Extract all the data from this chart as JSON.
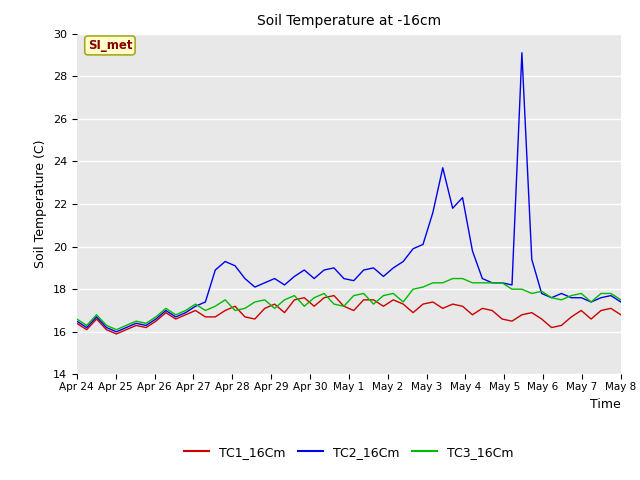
{
  "title": "Soil Temperature at -16cm",
  "xlabel": "Time",
  "ylabel": "Soil Temperature (C)",
  "ylim": [
    14,
    30
  ],
  "yticks": [
    14,
    16,
    18,
    20,
    22,
    24,
    26,
    28,
    30
  ],
  "bg_color": "#e8e8e8",
  "fig_color": "#ffffff",
  "annotation_text": "SI_met",
  "annotation_color": "#8b0000",
  "annotation_bg": "#ffffcc",
  "x_tick_labels": [
    "Apr 24",
    "Apr 25",
    "Apr 26",
    "Apr 27",
    "Apr 28",
    "Apr 29",
    "Apr 30",
    "May 1",
    "May 2",
    "May 3",
    "May 4",
    "May 5",
    "May 6",
    "May 7",
    "May 8"
  ],
  "tc1_color": "#cc0000",
  "tc2_color": "#0000ee",
  "tc3_color": "#00bb00",
  "tc1_values": [
    16.4,
    16.1,
    16.6,
    16.1,
    15.9,
    16.1,
    16.3,
    16.2,
    16.5,
    16.9,
    16.6,
    16.8,
    17.0,
    16.7,
    16.7,
    17.0,
    17.2,
    16.7,
    16.6,
    17.1,
    17.3,
    16.9,
    17.5,
    17.6,
    17.2,
    17.6,
    17.7,
    17.2,
    17.0,
    17.5,
    17.5,
    17.2,
    17.5,
    17.3,
    16.9,
    17.3,
    17.4,
    17.1,
    17.3,
    17.2,
    16.8,
    17.1,
    17.0,
    16.6,
    16.5,
    16.8,
    16.9,
    16.6,
    16.2,
    16.3,
    16.7,
    17.0,
    16.6,
    17.0,
    17.1,
    16.8
  ],
  "tc2_values": [
    16.5,
    16.2,
    16.7,
    16.2,
    16.0,
    16.2,
    16.4,
    16.3,
    16.6,
    17.0,
    16.7,
    16.9,
    17.2,
    17.4,
    18.9,
    19.3,
    19.1,
    18.5,
    18.1,
    18.3,
    18.5,
    18.2,
    18.6,
    18.9,
    18.5,
    18.9,
    19.0,
    18.5,
    18.4,
    18.9,
    19.0,
    18.6,
    19.0,
    19.3,
    19.9,
    20.1,
    21.6,
    23.7,
    21.8,
    22.3,
    19.8,
    18.5,
    18.3,
    18.3,
    18.2,
    29.1,
    19.4,
    17.8,
    17.6,
    17.8,
    17.6,
    17.6,
    17.4,
    17.6,
    17.7,
    17.4
  ],
  "tc3_values": [
    16.6,
    16.3,
    16.8,
    16.3,
    16.1,
    16.3,
    16.5,
    16.4,
    16.7,
    17.1,
    16.8,
    17.0,
    17.3,
    17.0,
    17.2,
    17.5,
    17.0,
    17.1,
    17.4,
    17.5,
    17.1,
    17.5,
    17.7,
    17.2,
    17.6,
    17.8,
    17.3,
    17.2,
    17.7,
    17.8,
    17.3,
    17.7,
    17.8,
    17.4,
    18.0,
    18.1,
    18.3,
    18.3,
    18.5,
    18.5,
    18.3,
    18.3,
    18.3,
    18.3,
    18.0,
    18.0,
    17.8,
    17.9,
    17.6,
    17.5,
    17.7,
    17.8,
    17.4,
    17.8,
    17.8,
    17.5
  ]
}
